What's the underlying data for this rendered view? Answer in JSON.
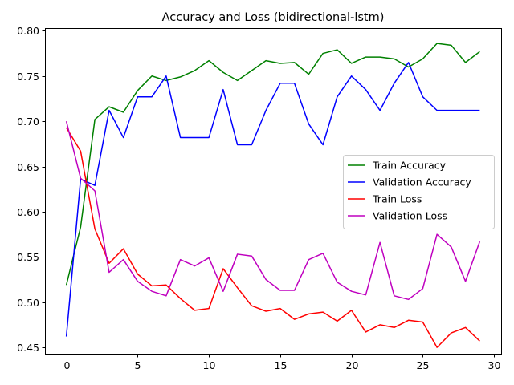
{
  "chart_data": {
    "type": "line",
    "title": "Accuracy and Loss (bidirectional-lstm)",
    "xlabel": "",
    "ylabel": "",
    "xlim": [
      -1.5,
      30.5
    ],
    "ylim": [
      0.443,
      0.803
    ],
    "xticks": [
      0,
      5,
      10,
      15,
      20,
      25,
      30
    ],
    "yticks": [
      0.45,
      0.5,
      0.55,
      0.6,
      0.65,
      0.7,
      0.75,
      0.8
    ],
    "grid": false,
    "legend_position": "center-right",
    "x": [
      0,
      1,
      2,
      3,
      4,
      5,
      6,
      7,
      8,
      9,
      10,
      11,
      12,
      13,
      14,
      15,
      16,
      17,
      18,
      19,
      20,
      21,
      22,
      23,
      24,
      25,
      26,
      27,
      28,
      29
    ],
    "series": [
      {
        "name": "Train Accuracy",
        "color": "#008000",
        "values": [
          0.519,
          0.583,
          0.702,
          0.716,
          0.71,
          0.734,
          0.75,
          0.745,
          0.749,
          0.756,
          0.767,
          0.754,
          0.745,
          0.756,
          0.767,
          0.764,
          0.765,
          0.752,
          0.775,
          0.779,
          0.764,
          0.771,
          0.771,
          0.769,
          0.76,
          0.769,
          0.786,
          0.784,
          0.765,
          0.777
        ]
      },
      {
        "name": "Validation Accuracy",
        "color": "#0000ff",
        "values": [
          0.462,
          0.636,
          0.629,
          0.712,
          0.682,
          0.727,
          0.727,
          0.75,
          0.682,
          0.682,
          0.682,
          0.735,
          0.674,
          0.674,
          0.712,
          0.742,
          0.742,
          0.697,
          0.674,
          0.727,
          0.75,
          0.735,
          0.712,
          0.742,
          0.765,
          0.727,
          0.712,
          0.712,
          0.712,
          0.712
        ]
      },
      {
        "name": "Train Loss",
        "color": "#ff0000",
        "values": [
          0.693,
          0.667,
          0.581,
          0.543,
          0.559,
          0.531,
          0.518,
          0.519,
          0.504,
          0.491,
          0.493,
          0.537,
          0.516,
          0.496,
          0.49,
          0.493,
          0.481,
          0.487,
          0.489,
          0.479,
          0.491,
          0.467,
          0.475,
          0.472,
          0.48,
          0.478,
          0.45,
          0.466,
          0.472,
          0.457
        ]
      },
      {
        "name": "Validation Loss",
        "color": "#bf00bf",
        "values": [
          0.7,
          0.637,
          0.623,
          0.533,
          0.547,
          0.523,
          0.512,
          0.507,
          0.547,
          0.54,
          0.549,
          0.512,
          0.553,
          0.551,
          0.525,
          0.513,
          0.513,
          0.547,
          0.554,
          0.522,
          0.512,
          0.508,
          0.566,
          0.507,
          0.503,
          0.515,
          0.575,
          0.561,
          0.523,
          0.567
        ]
      }
    ]
  }
}
